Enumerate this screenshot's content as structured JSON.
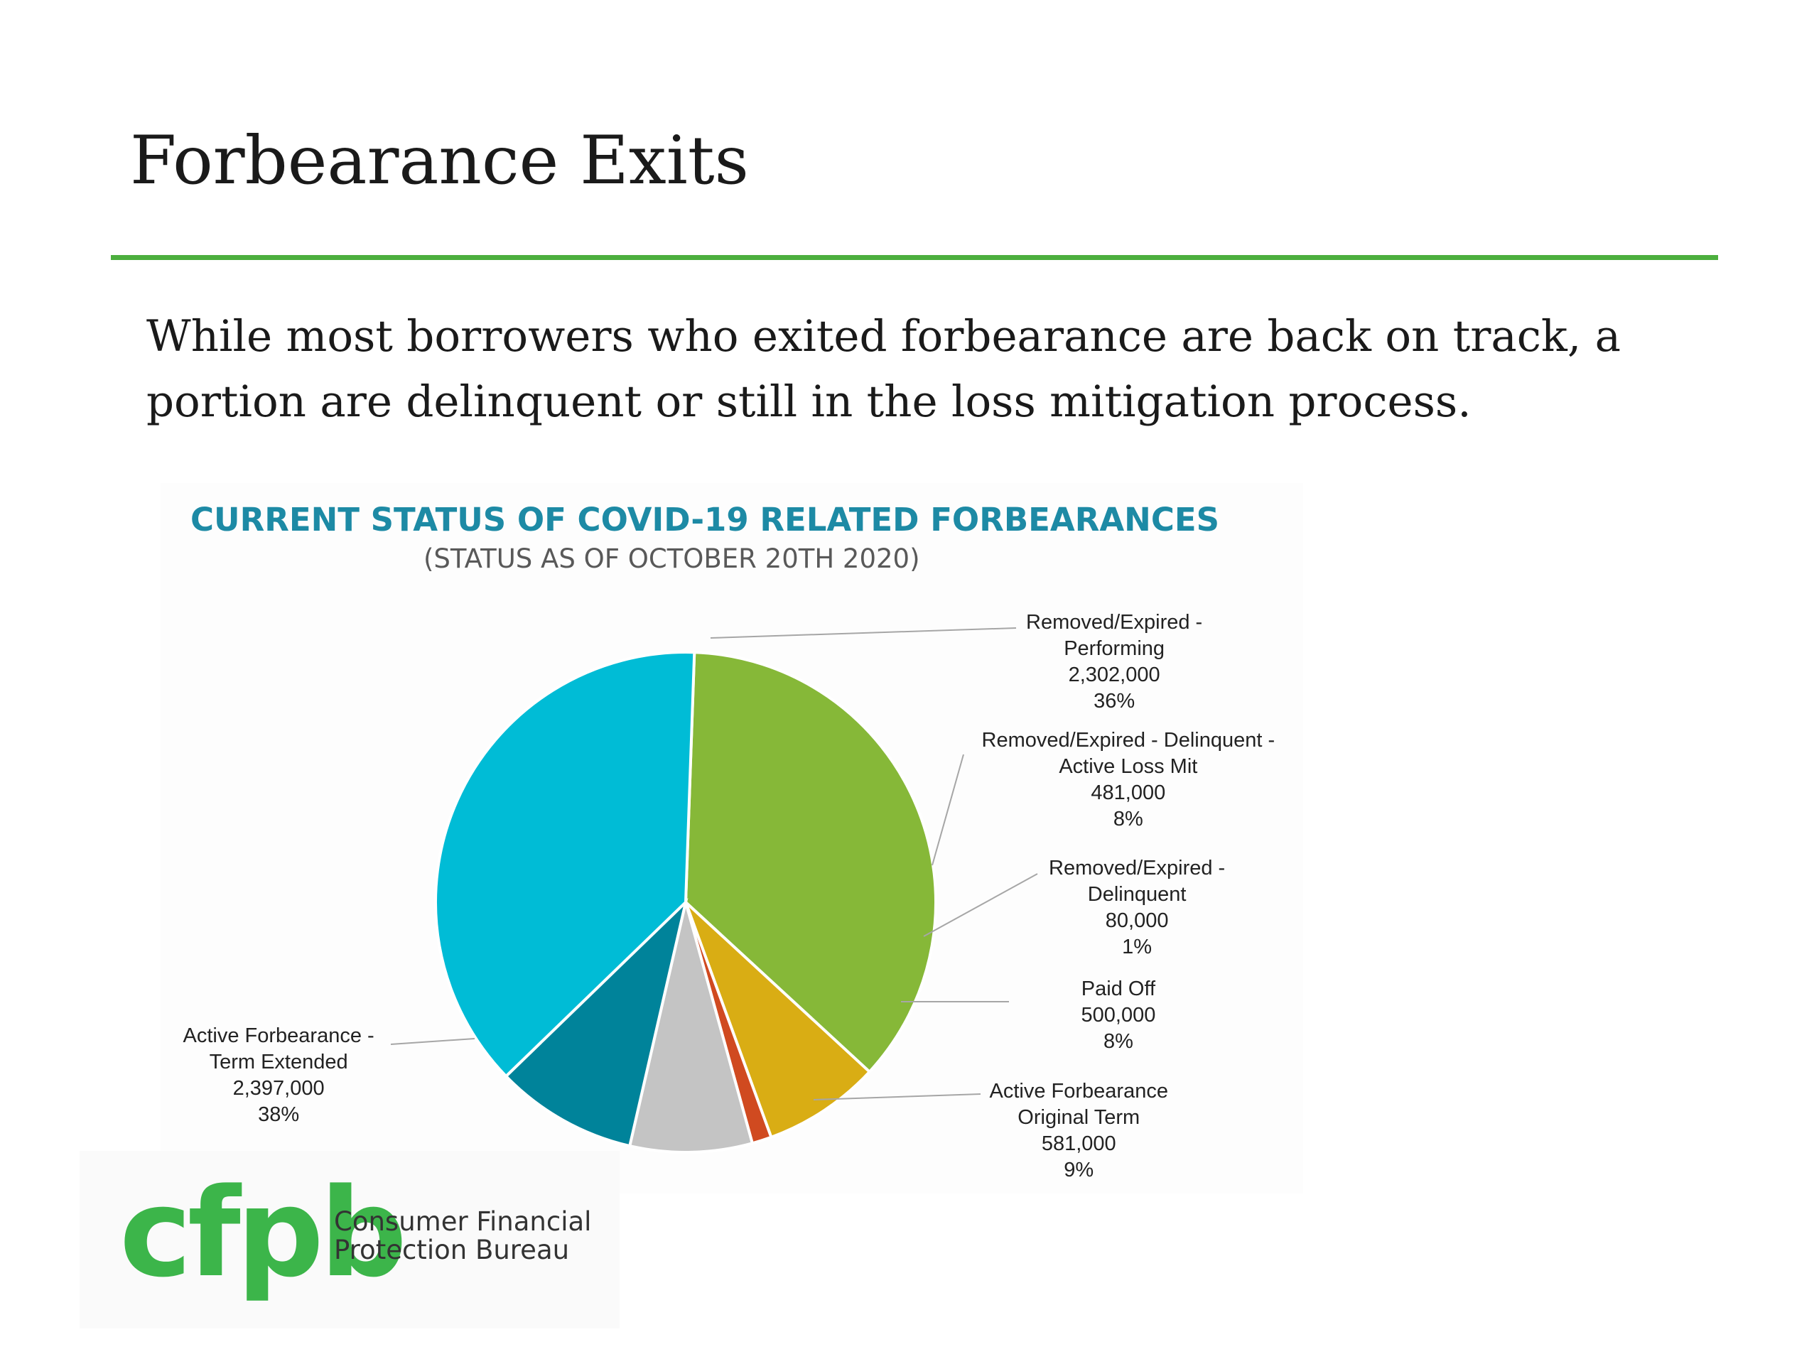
{
  "slide": {
    "title": "Forbearance Exits",
    "subtitle": "While most borrowers who exited forbearance are back on track, a portion are delinquent or still in the loss mitigation process."
  },
  "colors": {
    "accent_rule": "#4caf3e",
    "chart_title": "#1d8aa5"
  },
  "chart_data": {
    "type": "pie",
    "title": "CURRENT STATUS OF COVID-19 RELATED FORBEARANCES",
    "subtitle": "(STATUS AS OF OCTOBER 20TH 2020)",
    "slices": [
      {
        "label_lines": [
          "Removed/Expired -",
          "Performing"
        ],
        "value": 2302000,
        "value_text": "2,302,000",
        "percent": "36%",
        "color": "#86b838"
      },
      {
        "label_lines": [
          "Removed/Expired - Delinquent -",
          "Active Loss Mit"
        ],
        "value": 481000,
        "value_text": "481,000",
        "percent": "8%",
        "color": "#d9ad14"
      },
      {
        "label_lines": [
          "Removed/Expired -",
          "Delinquent"
        ],
        "value": 80000,
        "value_text": "80,000",
        "percent": "1%",
        "color": "#d04a20"
      },
      {
        "label_lines": [
          "Paid Off"
        ],
        "value": 500000,
        "value_text": "500,000",
        "percent": "8%",
        "color": "#c4c4c4"
      },
      {
        "label_lines": [
          "Active Forbearance",
          "Original Term"
        ],
        "value": 581000,
        "value_text": "581,000",
        "percent": "9%",
        "color": "#00839a"
      },
      {
        "label_lines": [
          "Active Forbearance -",
          "Term Extended"
        ],
        "value": 2397000,
        "value_text": "2,397,000",
        "percent": "38%",
        "color": "#00bcd6"
      }
    ]
  },
  "footer": {
    "logo_mark": "cfpb",
    "org_line1": "Consumer Financial",
    "org_line2": "Protection Bureau"
  }
}
